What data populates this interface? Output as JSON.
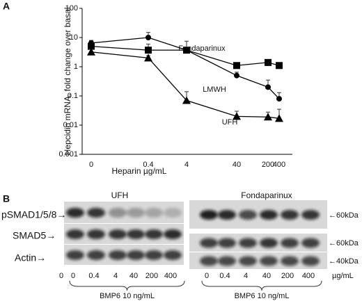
{
  "chart_data": {
    "type": "line",
    "panel_label": "A",
    "y_label": "Hepcidin mRNA, fold change over basal",
    "x_label": "Heparin µg/mL",
    "categories": [
      "0",
      "0.4",
      "4",
      "40",
      "200",
      "400"
    ],
    "ylog": true,
    "ylim": [
      0.001,
      100
    ],
    "yticks": [
      0.001,
      0.01,
      0.1,
      1,
      10,
      100
    ],
    "series": [
      {
        "name": "Fondaparinux",
        "color": "#000000",
        "marker": "square",
        "values": [
          5,
          3.7,
          3.7,
          1.1,
          1.4,
          1.1
        ],
        "errors": [
          2.5,
          2.3,
          3.8,
          0.2,
          0.2,
          0.1
        ]
      },
      {
        "name": "LMWH",
        "color": "#000000",
        "marker": "circle",
        "values": [
          6.5,
          10,
          3.7,
          0.5,
          0.2,
          0.08
        ],
        "errors": [
          1.5,
          5,
          1,
          0.15,
          0.15,
          0.05
        ]
      },
      {
        "name": "UFH",
        "color": "#000000",
        "marker": "triangle",
        "values": [
          3.2,
          2.0,
          0.07,
          0.02,
          0.019,
          0.017
        ],
        "errors": [
          0.8,
          0.4,
          0.07,
          0.01,
          0.009,
          0.018
        ]
      }
    ]
  },
  "blot": {
    "panel_label": "B",
    "groups": [
      {
        "title": "UFH",
        "lanes": [
          "0",
          "0.4",
          "4",
          "40",
          "200",
          "400"
        ],
        "treatment": "BMP6 10 ng/mL"
      },
      {
        "title": "Fondaparinux",
        "lanes": [
          "0",
          "0.4",
          "4",
          "40",
          "200",
          "400"
        ],
        "treatment": "BMP6 10 ng/mL"
      }
    ],
    "control_lane": "0",
    "unit": "µg/mL",
    "row_labels": [
      "pSMAD1/5/8→",
      "SMAD5→",
      "Actin→"
    ],
    "size_markers": [
      "←60kDa",
      "←60kDa",
      "←40kDa"
    ]
  }
}
